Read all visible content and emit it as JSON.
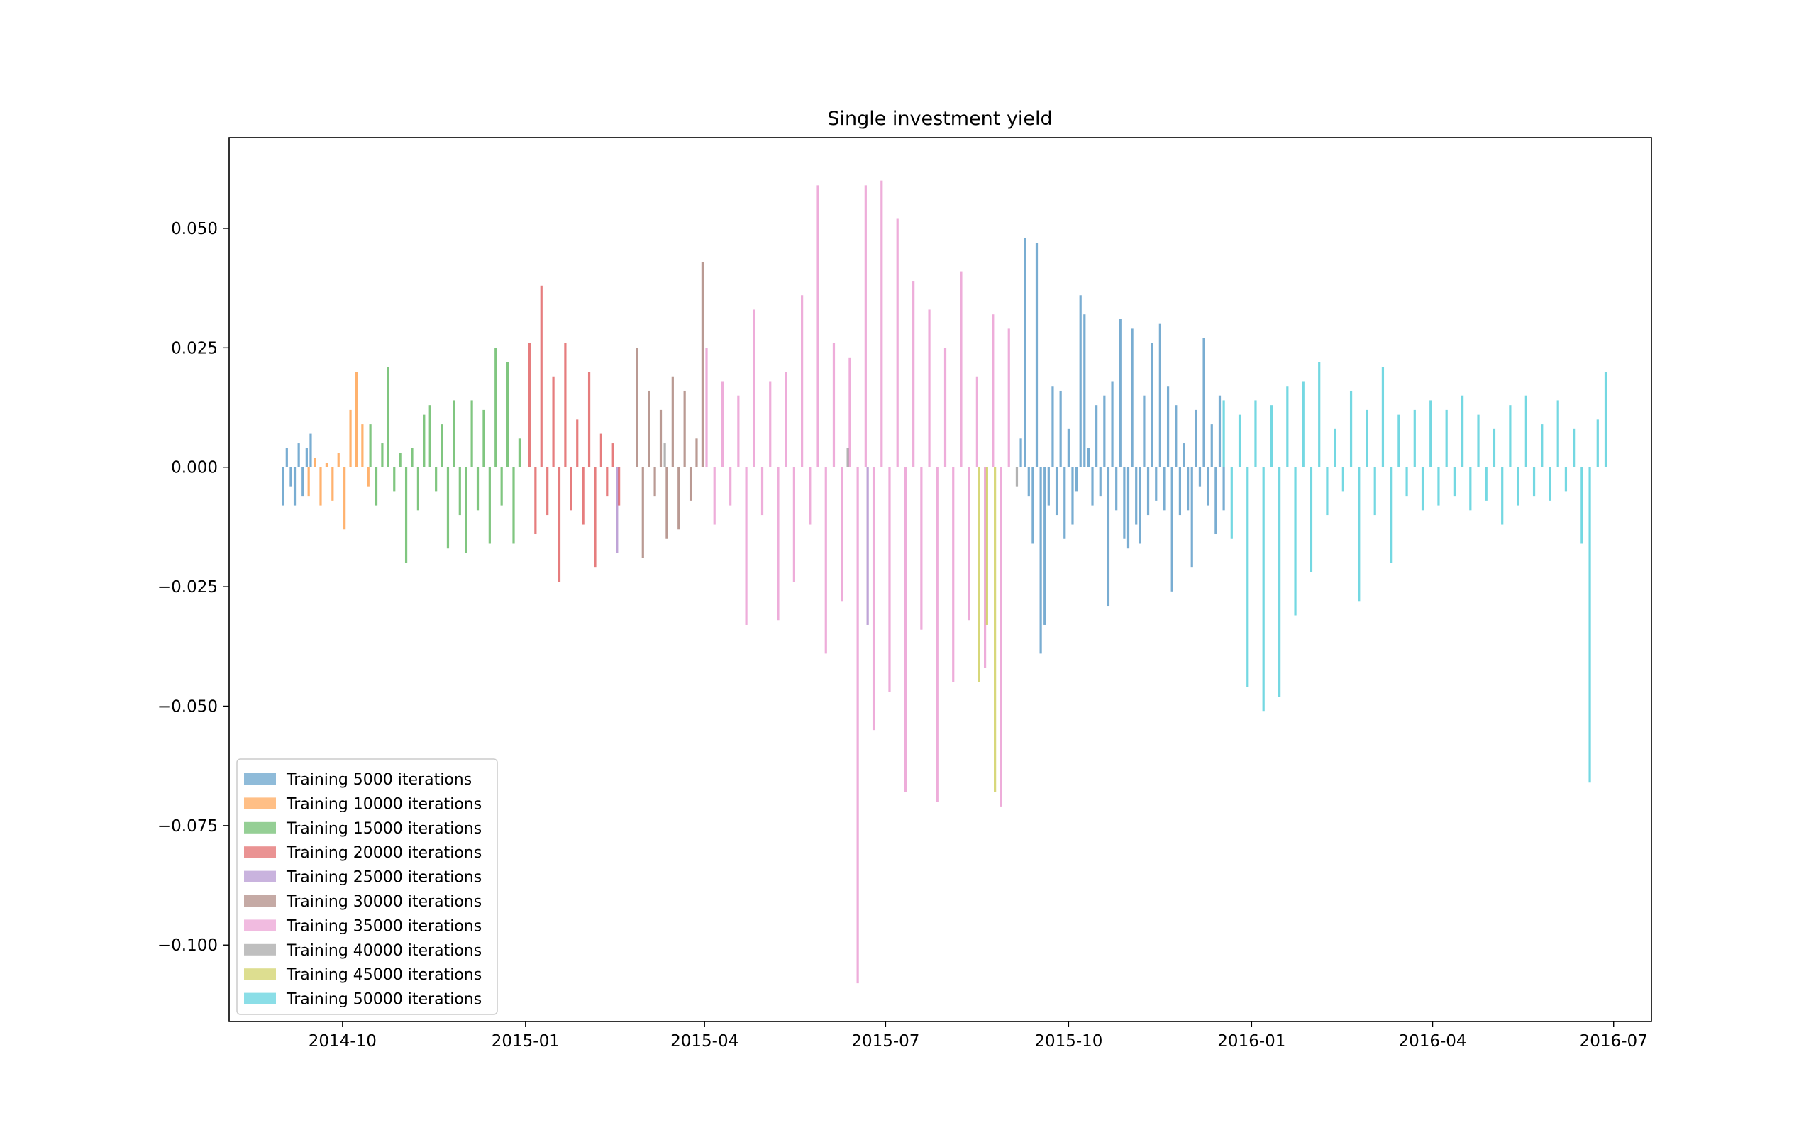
{
  "chart_data": {
    "type": "bar",
    "title": "Single investment yield",
    "xlabel": "",
    "ylabel": "",
    "xlim": [
      "2014-08-05",
      "2016-07-20"
    ],
    "ylim": [
      -0.116,
      0.069
    ],
    "grid": false,
    "legend_position": "lower-left",
    "x_ticks": [
      "2014-10",
      "2015-01",
      "2015-04",
      "2015-07",
      "2015-10",
      "2016-01",
      "2016-04",
      "2016-07"
    ],
    "y_ticks": [
      "0.050",
      "0.025",
      "0.000",
      "−0.025",
      "−0.050",
      "−0.075",
      "−0.100"
    ],
    "y_tick_values": [
      0.05,
      0.025,
      0.0,
      -0.025,
      -0.05,
      -0.075,
      -0.1
    ],
    "series": [
      {
        "name": "Training 5000 iterations",
        "color": "#1f77b4",
        "x": [
          "2014-09-01",
          "2014-09-03",
          "2014-09-05",
          "2014-09-07",
          "2014-09-09",
          "2014-09-11",
          "2014-09-13",
          "2014-09-15",
          "2015-09-07",
          "2015-09-09",
          "2015-09-11",
          "2015-09-13",
          "2015-09-15",
          "2015-09-17",
          "2015-09-19",
          "2015-09-21",
          "2015-09-23",
          "2015-09-25",
          "2015-09-27",
          "2015-09-29",
          "2015-10-01",
          "2015-10-03",
          "2015-10-05",
          "2015-10-07",
          "2015-10-09",
          "2015-10-11",
          "2015-10-13",
          "2015-10-15",
          "2015-10-17",
          "2015-10-19",
          "2015-10-21",
          "2015-10-23",
          "2015-10-25",
          "2015-10-27",
          "2015-10-29",
          "2015-10-31",
          "2015-11-02",
          "2015-11-04",
          "2015-11-06",
          "2015-11-08",
          "2015-11-10",
          "2015-11-12",
          "2015-11-14",
          "2015-11-16",
          "2015-11-18",
          "2015-11-20",
          "2015-11-22",
          "2015-11-24",
          "2015-11-26",
          "2015-11-28",
          "2015-11-30",
          "2015-12-02",
          "2015-12-04",
          "2015-12-06",
          "2015-12-08",
          "2015-12-10",
          "2015-12-12",
          "2015-12-14",
          "2015-12-16",
          "2015-12-18"
        ],
        "values": [
          -0.008,
          0.004,
          -0.004,
          -0.008,
          0.005,
          -0.006,
          0.004,
          0.007,
          0.006,
          0.048,
          -0.006,
          -0.016,
          0.047,
          -0.039,
          -0.033,
          -0.008,
          0.017,
          -0.01,
          0.016,
          -0.015,
          0.008,
          -0.012,
          -0.005,
          0.036,
          0.032,
          0.004,
          -0.008,
          0.013,
          -0.006,
          0.015,
          -0.029,
          0.018,
          -0.009,
          0.031,
          -0.015,
          -0.017,
          0.029,
          -0.012,
          -0.016,
          0.015,
          -0.01,
          0.026,
          -0.007,
          0.03,
          -0.009,
          0.017,
          -0.026,
          0.013,
          -0.01,
          0.005,
          -0.009,
          -0.021,
          0.012,
          -0.004,
          0.027,
          -0.008,
          0.009,
          -0.014,
          0.015,
          -0.009
        ]
      },
      {
        "name": "Training 10000 iterations",
        "color": "#ff7f0e",
        "x": [
          "2014-09-14",
          "2014-09-17",
          "2014-09-20",
          "2014-09-23",
          "2014-09-26",
          "2014-09-29",
          "2014-10-02",
          "2014-10-05",
          "2014-10-08",
          "2014-10-11",
          "2014-10-14"
        ],
        "values": [
          -0.006,
          0.002,
          -0.008,
          0.001,
          -0.007,
          0.003,
          -0.013,
          0.012,
          0.02,
          0.009,
          -0.004
        ]
      },
      {
        "name": "Training 15000 iterations",
        "color": "#2ca02c",
        "x": [
          "2014-10-15",
          "2014-10-18",
          "2014-10-21",
          "2014-10-24",
          "2014-10-27",
          "2014-10-30",
          "2014-11-02",
          "2014-11-05",
          "2014-11-08",
          "2014-11-11",
          "2014-11-14",
          "2014-11-17",
          "2014-11-20",
          "2014-11-23",
          "2014-11-26",
          "2014-11-29",
          "2014-12-02",
          "2014-12-05",
          "2014-12-08",
          "2014-12-11",
          "2014-12-14",
          "2014-12-17",
          "2014-12-20",
          "2014-12-23",
          "2014-12-26",
          "2014-12-29"
        ],
        "values": [
          0.009,
          -0.008,
          0.005,
          0.021,
          -0.005,
          0.003,
          -0.02,
          0.004,
          -0.009,
          0.011,
          0.013,
          -0.005,
          0.009,
          -0.017,
          0.014,
          -0.01,
          -0.018,
          0.014,
          -0.009,
          0.012,
          -0.016,
          0.025,
          -0.008,
          0.022,
          -0.016,
          0.006
        ]
      },
      {
        "name": "Training 20000 iterations",
        "color": "#d62728",
        "x": [
          "2015-01-03",
          "2015-01-06",
          "2015-01-09",
          "2015-01-12",
          "2015-01-15",
          "2015-01-18",
          "2015-01-21",
          "2015-01-24",
          "2015-01-27",
          "2015-01-30",
          "2015-02-02",
          "2015-02-05",
          "2015-02-08",
          "2015-02-11",
          "2015-02-14",
          "2015-02-17"
        ],
        "values": [
          0.026,
          -0.014,
          0.038,
          -0.01,
          0.019,
          -0.024,
          0.026,
          -0.009,
          0.01,
          -0.012,
          0.02,
          -0.021,
          0.007,
          -0.006,
          0.005,
          -0.008
        ]
      },
      {
        "name": "Training 25000 iterations",
        "color": "#9467bd",
        "x": [
          "2015-02-16",
          "2015-06-22"
        ],
        "values": [
          -0.018,
          -0.033
        ]
      },
      {
        "name": "Training 30000 iterations",
        "color": "#8c564b",
        "x": [
          "2015-02-26",
          "2015-03-01",
          "2015-03-04",
          "2015-03-07",
          "2015-03-10",
          "2015-03-13",
          "2015-03-16",
          "2015-03-19",
          "2015-03-22",
          "2015-03-25",
          "2015-03-28",
          "2015-03-31"
        ],
        "values": [
          0.025,
          -0.019,
          0.016,
          -0.006,
          0.012,
          -0.015,
          0.019,
          -0.013,
          0.016,
          -0.007,
          0.006,
          0.043
        ]
      },
      {
        "name": "Training 35000 iterations",
        "color": "#e377c2",
        "x": [
          "2015-04-02",
          "2015-04-06",
          "2015-04-10",
          "2015-04-14",
          "2015-04-18",
          "2015-04-22",
          "2015-04-26",
          "2015-04-30",
          "2015-05-04",
          "2015-05-08",
          "2015-05-12",
          "2015-05-16",
          "2015-05-20",
          "2015-05-24",
          "2015-05-28",
          "2015-06-01",
          "2015-06-05",
          "2015-06-09",
          "2015-06-13",
          "2015-06-17",
          "2015-06-21",
          "2015-06-25",
          "2015-06-29",
          "2015-07-03",
          "2015-07-07",
          "2015-07-11",
          "2015-07-15",
          "2015-07-19",
          "2015-07-23",
          "2015-07-27",
          "2015-07-31",
          "2015-08-04",
          "2015-08-08",
          "2015-08-12",
          "2015-08-16",
          "2015-08-20",
          "2015-08-24",
          "2015-08-28",
          "2015-09-01"
        ],
        "values": [
          0.025,
          -0.012,
          0.018,
          -0.008,
          0.015,
          -0.033,
          0.033,
          -0.01,
          0.018,
          -0.032,
          0.02,
          -0.024,
          0.036,
          -0.012,
          0.059,
          -0.039,
          0.026,
          -0.028,
          0.023,
          -0.108,
          0.059,
          -0.055,
          0.06,
          -0.047,
          0.052,
          -0.068,
          0.039,
          -0.034,
          0.033,
          -0.07,
          0.025,
          -0.045,
          0.041,
          -0.032,
          0.019,
          -0.042,
          0.032,
          -0.071,
          0.029
        ]
      },
      {
        "name": "Training 40000 iterations",
        "color": "#7f7f7f",
        "x": [
          "2015-03-12",
          "2015-06-12",
          "2015-09-05"
        ],
        "values": [
          0.005,
          0.004,
          -0.004
        ]
      },
      {
        "name": "Training 45000 iterations",
        "color": "#bcbd22",
        "x": [
          "2015-08-17",
          "2015-08-21",
          "2015-08-25"
        ],
        "values": [
          -0.045,
          -0.033,
          -0.068
        ]
      },
      {
        "name": "Training 50000 iterations",
        "color": "#17becf",
        "x": [
          "2015-12-18",
          "2015-12-22",
          "2015-12-26",
          "2015-12-30",
          "2016-01-03",
          "2016-01-07",
          "2016-01-11",
          "2016-01-15",
          "2016-01-19",
          "2016-01-23",
          "2016-01-27",
          "2016-01-31",
          "2016-02-04",
          "2016-02-08",
          "2016-02-12",
          "2016-02-16",
          "2016-02-20",
          "2016-02-24",
          "2016-02-28",
          "2016-03-03",
          "2016-03-07",
          "2016-03-11",
          "2016-03-15",
          "2016-03-19",
          "2016-03-23",
          "2016-03-27",
          "2016-03-31",
          "2016-04-04",
          "2016-04-08",
          "2016-04-12",
          "2016-04-16",
          "2016-04-20",
          "2016-04-24",
          "2016-04-28",
          "2016-05-02",
          "2016-05-06",
          "2016-05-10",
          "2016-05-14",
          "2016-05-18",
          "2016-05-22",
          "2016-05-26",
          "2016-05-30",
          "2016-06-03",
          "2016-06-07",
          "2016-06-11",
          "2016-06-15",
          "2016-06-19",
          "2016-06-23",
          "2016-06-27"
        ],
        "values": [
          0.014,
          -0.015,
          0.011,
          -0.046,
          0.014,
          -0.051,
          0.013,
          -0.048,
          0.017,
          -0.031,
          0.018,
          -0.022,
          0.022,
          -0.01,
          0.008,
          -0.005,
          0.016,
          -0.028,
          0.012,
          -0.01,
          0.021,
          -0.02,
          0.011,
          -0.006,
          0.012,
          -0.009,
          0.014,
          -0.008,
          0.012,
          -0.006,
          0.015,
          -0.009,
          0.011,
          -0.007,
          0.008,
          -0.012,
          0.013,
          -0.008,
          0.015,
          -0.006,
          0.009,
          -0.007,
          0.014,
          -0.005,
          0.008,
          -0.016,
          -0.066,
          0.01,
          0.02
        ]
      }
    ]
  }
}
